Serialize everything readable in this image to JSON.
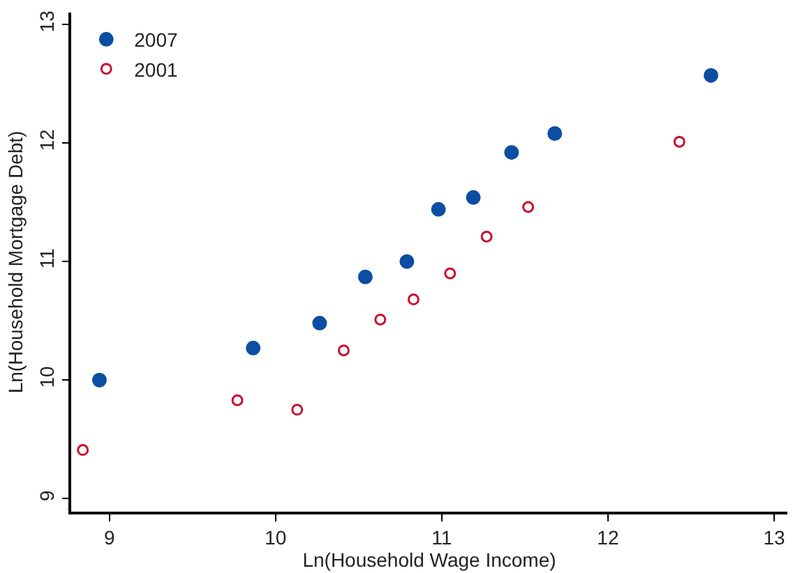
{
  "chart_data": {
    "type": "scatter",
    "xlabel": "Ln(Household Wage Income)",
    "ylabel": "Ln(Household Mortgage Debt)",
    "series": [
      {
        "name": "2007",
        "color": "#0b4ea2",
        "x": [
          8.94,
          9.865,
          10.265,
          10.54,
          10.79,
          10.98,
          11.19,
          11.42,
          11.68,
          12.62
        ],
        "values": [
          10.0,
          10.27,
          10.48,
          10.87,
          11.0,
          11.44,
          11.54,
          11.92,
          12.08,
          12.57
        ]
      },
      {
        "name": "2001",
        "color": "#c8102e",
        "x": [
          8.84,
          9.77,
          10.13,
          10.41,
          10.63,
          10.83,
          11.05,
          11.27,
          11.52,
          12.43
        ],
        "values": [
          9.41,
          9.83,
          9.75,
          10.25,
          10.51,
          10.68,
          10.9,
          11.21,
          11.46,
          12.01
        ]
      }
    ],
    "xlim": [
      8.77,
      13.08
    ],
    "xticks": [
      9,
      10,
      11,
      12,
      13
    ],
    "ylim": [
      8.89,
      13.1
    ],
    "yticks": [
      9,
      10,
      11,
      12,
      13
    ],
    "grid": false,
    "legend": "top left",
    "marker": "circle"
  }
}
